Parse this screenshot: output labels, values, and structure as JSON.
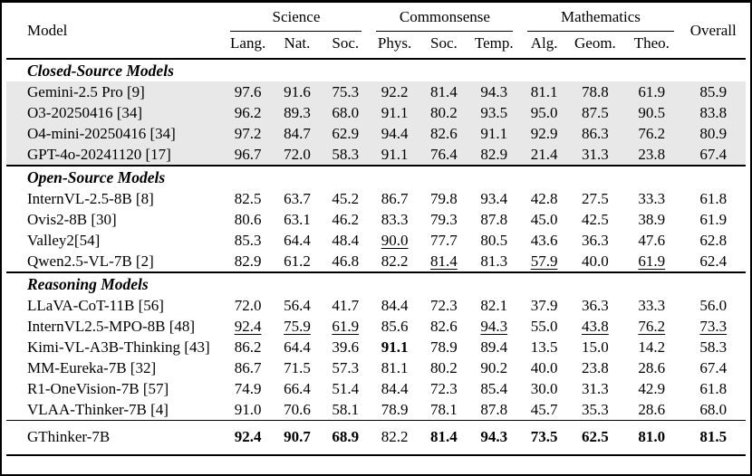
{
  "colors": {
    "highlight_bg": "#e8e8e8",
    "rule": "#000000",
    "text": "#000000",
    "background": "#ffffff"
  },
  "table": {
    "header": {
      "model": "Model",
      "overall": "Overall"
    },
    "groups": [
      {
        "label": "Science",
        "cols": [
          "Lang.",
          "Nat.",
          "Soc."
        ]
      },
      {
        "label": "Commonsense",
        "cols": [
          "Phys.",
          "Soc.",
          "Temp."
        ]
      },
      {
        "label": "Mathematics",
        "cols": [
          "Alg.",
          "Geom.",
          "Theo."
        ]
      }
    ],
    "sections": [
      {
        "title": "Closed-Source Models",
        "highlight": true,
        "rows": [
          {
            "model": "Gemini-2.5 Pro [9]",
            "values": [
              "97.6",
              "91.6",
              "75.3",
              "92.2",
              "81.4",
              "94.3",
              "81.1",
              "78.8",
              "61.9",
              "85.9"
            ],
            "marks": [
              "",
              "",
              "",
              "",
              "",
              "",
              "",
              "",
              "",
              ""
            ]
          },
          {
            "model": "O3-20250416 [34]",
            "values": [
              "96.2",
              "89.3",
              "68.0",
              "91.1",
              "80.2",
              "93.5",
              "95.0",
              "87.5",
              "90.5",
              "83.8"
            ],
            "marks": [
              "",
              "",
              "",
              "",
              "",
              "",
              "",
              "",
              "",
              ""
            ]
          },
          {
            "model": "O4-mini-20250416 [34]",
            "values": [
              "97.2",
              "84.7",
              "62.9",
              "94.4",
              "82.6",
              "91.1",
              "92.9",
              "86.3",
              "76.2",
              "80.9"
            ],
            "marks": [
              "",
              "",
              "",
              "",
              "",
              "",
              "",
              "",
              "",
              ""
            ]
          },
          {
            "model": "GPT-4o-20241120 [17]",
            "values": [
              "96.7",
              "72.0",
              "58.3",
              "91.1",
              "76.4",
              "82.9",
              "21.4",
              "31.3",
              "23.8",
              "67.4"
            ],
            "marks": [
              "",
              "",
              "",
              "",
              "",
              "",
              "",
              "",
              "",
              ""
            ]
          }
        ]
      },
      {
        "title": "Open-Source Models",
        "highlight": false,
        "rows": [
          {
            "model": "InternVL-2.5-8B [8]",
            "values": [
              "82.5",
              "63.7",
              "45.2",
              "86.7",
              "79.8",
              "93.4",
              "42.8",
              "27.5",
              "33.3",
              "61.8"
            ],
            "marks": [
              "",
              "",
              "",
              "",
              "",
              "",
              "",
              "",
              "",
              ""
            ]
          },
          {
            "model": "Ovis2-8B [30]",
            "values": [
              "80.6",
              "63.1",
              "46.2",
              "83.3",
              "79.3",
              "87.8",
              "45.0",
              "42.5",
              "38.9",
              "61.9"
            ],
            "marks": [
              "",
              "",
              "",
              "",
              "",
              "",
              "",
              "",
              "",
              ""
            ]
          },
          {
            "model": "Valley2[54]",
            "values": [
              "85.3",
              "64.4",
              "48.4",
              "90.0",
              "77.7",
              "80.5",
              "43.6",
              "36.3",
              "47.6",
              "62.8"
            ],
            "marks": [
              "",
              "",
              "",
              "u",
              "",
              "",
              "",
              "",
              "",
              ""
            ]
          },
          {
            "model": "Qwen2.5-VL-7B [2]",
            "values": [
              "82.9",
              "61.2",
              "46.8",
              "82.2",
              "81.4",
              "81.3",
              "57.9",
              "40.0",
              "61.9",
              "62.4"
            ],
            "marks": [
              "",
              "",
              "",
              "",
              "u",
              "",
              "u",
              "",
              "u",
              ""
            ]
          }
        ]
      },
      {
        "title": "Reasoning Models",
        "highlight": false,
        "rows": [
          {
            "model": "LLaVA-CoT-11B [56]",
            "values": [
              "72.0",
              "56.4",
              "41.7",
              "84.4",
              "72.3",
              "82.1",
              "37.9",
              "36.3",
              "33.3",
              "56.0"
            ],
            "marks": [
              "",
              "",
              "",
              "",
              "",
              "",
              "",
              "",
              "",
              ""
            ]
          },
          {
            "model": "InternVL2.5-MPO-8B [48]",
            "values": [
              "92.4",
              "75.9",
              "61.9",
              "85.6",
              "82.6",
              "94.3",
              "55.0",
              "43.8",
              "76.2",
              "73.3"
            ],
            "marks": [
              "u",
              "u",
              "u",
              "",
              "",
              "u",
              "",
              "u",
              "u",
              "u"
            ]
          },
          {
            "model": "Kimi-VL-A3B-Thinking [43]",
            "values": [
              "86.2",
              "64.4",
              "39.6",
              "91.1",
              "78.9",
              "89.4",
              "13.5",
              "15.0",
              "14.2",
              "58.3"
            ],
            "marks": [
              "",
              "",
              "",
              "b",
              "",
              "",
              "",
              "",
              "",
              ""
            ]
          },
          {
            "model": "MM-Eureka-7B [32]",
            "values": [
              "86.7",
              "71.5",
              "57.3",
              "81.1",
              "80.2",
              "90.2",
              "40.0",
              "23.8",
              "28.6",
              "67.4"
            ],
            "marks": [
              "",
              "",
              "",
              "",
              "",
              "",
              "",
              "",
              "",
              ""
            ]
          },
          {
            "model": "R1-OneVision-7B [57]",
            "values": [
              "74.9",
              "66.4",
              "51.4",
              "84.4",
              "72.3",
              "85.4",
              "30.0",
              "31.3",
              "42.9",
              "61.8"
            ],
            "marks": [
              "",
              "",
              "",
              "",
              "",
              "",
              "",
              "",
              "",
              ""
            ]
          },
          {
            "model": "VLAA-Thinker-7B [4]",
            "values": [
              "91.0",
              "70.6",
              "58.1",
              "78.9",
              "78.1",
              "87.8",
              "45.7",
              "35.3",
              "28.6",
              "68.0"
            ],
            "marks": [
              "",
              "",
              "",
              "",
              "",
              "",
              "",
              "",
              "",
              ""
            ]
          }
        ]
      }
    ],
    "footer": {
      "model": "GThinker-7B",
      "values": [
        "92.4",
        "90.7",
        "68.9",
        "82.2",
        "81.4",
        "94.3",
        "73.5",
        "62.5",
        "81.0",
        "81.5"
      ],
      "marks": [
        "b",
        "b",
        "b",
        "",
        "b",
        "b",
        "b",
        "b",
        "b",
        "b"
      ]
    }
  }
}
